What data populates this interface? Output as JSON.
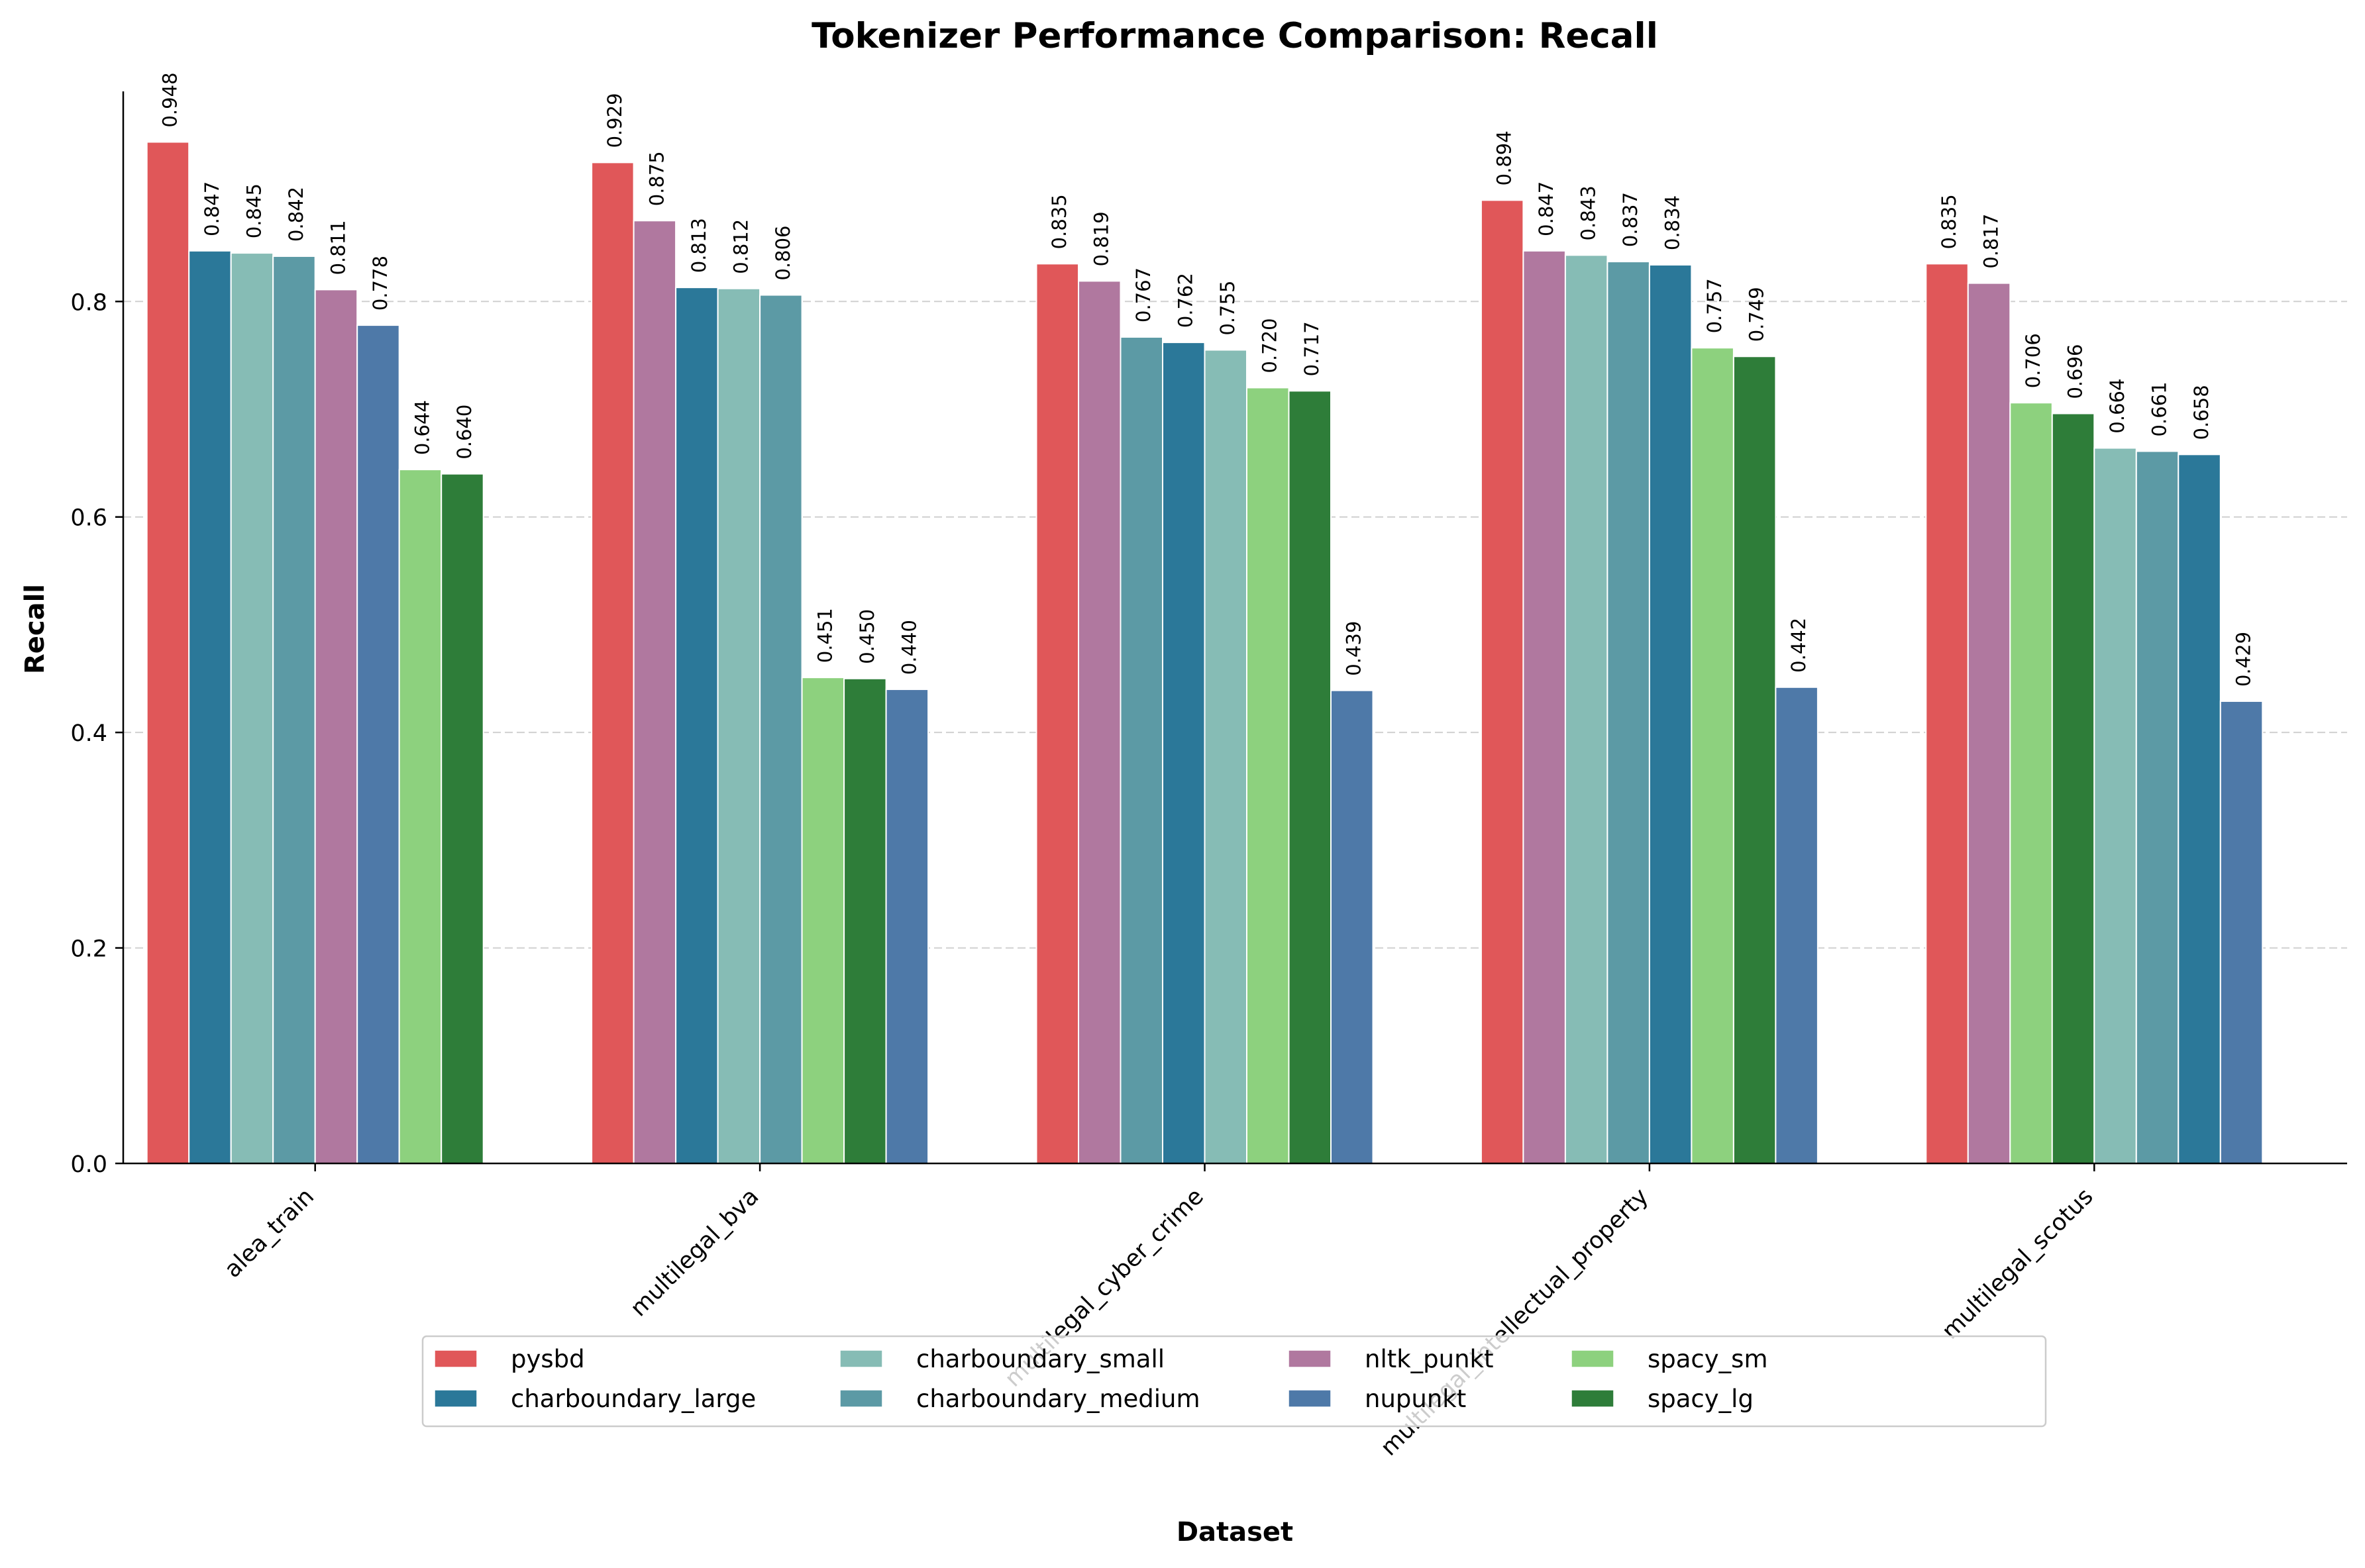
{
  "chart_data": {
    "type": "bar",
    "title": "Tokenizer Performance Comparison: Recall",
    "xlabel": "Dataset",
    "ylabel": "Recall",
    "ylim": [
      0,
      0.995
    ],
    "yticks": [
      "0.0",
      "0.2",
      "0.4",
      "0.6",
      "0.8"
    ],
    "grid": "y-dashed",
    "legend_placement": "bottom-center",
    "categories": [
      "alea_train",
      "multilegal_bva",
      "multilegal_cyber_crime",
      "multilegal_intellectual_property",
      "multilegal_scotus"
    ],
    "legend": [
      "pysbd",
      "charboundary_large",
      "charboundary_small",
      "charboundary_medium",
      "nltk_punkt",
      "nupunkt",
      "spacy_sm",
      "spacy_lg"
    ],
    "colors": {
      "pysbd": "#e05759",
      "charboundary_large": "#2b7899",
      "charboundary_small": "#86bcb5",
      "charboundary_medium": "#5c9aa5",
      "nltk_punkt": "#b0789f",
      "nupunkt": "#4e79a8",
      "spacy_sm": "#8dd17e",
      "spacy_lg": "#2e7d39"
    },
    "groups": [
      {
        "category": "alea_train",
        "bars": [
          {
            "series": "pysbd",
            "value": 0.948,
            "label": "0.948"
          },
          {
            "series": "charboundary_large",
            "value": 0.847,
            "label": "0.847"
          },
          {
            "series": "charboundary_small",
            "value": 0.845,
            "label": "0.845"
          },
          {
            "series": "charboundary_medium",
            "value": 0.842,
            "label": "0.842"
          },
          {
            "series": "nltk_punkt",
            "value": 0.811,
            "label": "0.811"
          },
          {
            "series": "nupunkt",
            "value": 0.778,
            "label": "0.778"
          },
          {
            "series": "spacy_sm",
            "value": 0.644,
            "label": "0.644"
          },
          {
            "series": "spacy_lg",
            "value": 0.64,
            "label": "0.640"
          }
        ]
      },
      {
        "category": "multilegal_bva",
        "bars": [
          {
            "series": "pysbd",
            "value": 0.929,
            "label": "0.929"
          },
          {
            "series": "nltk_punkt",
            "value": 0.875,
            "label": "0.875"
          },
          {
            "series": "charboundary_large",
            "value": 0.813,
            "label": "0.813"
          },
          {
            "series": "charboundary_small",
            "value": 0.812,
            "label": "0.812"
          },
          {
            "series": "charboundary_medium",
            "value": 0.806,
            "label": "0.806"
          },
          {
            "series": "spacy_sm",
            "value": 0.451,
            "label": "0.451"
          },
          {
            "series": "spacy_lg",
            "value": 0.45,
            "label": "0.450"
          },
          {
            "series": "nupunkt",
            "value": 0.44,
            "label": "0.440"
          }
        ]
      },
      {
        "category": "multilegal_cyber_crime",
        "bars": [
          {
            "series": "pysbd",
            "value": 0.835,
            "label": "0.835"
          },
          {
            "series": "nltk_punkt",
            "value": 0.819,
            "label": "0.819"
          },
          {
            "series": "charboundary_medium",
            "value": 0.767,
            "label": "0.767"
          },
          {
            "series": "charboundary_large",
            "value": 0.762,
            "label": "0.762"
          },
          {
            "series": "charboundary_small",
            "value": 0.755,
            "label": "0.755"
          },
          {
            "series": "spacy_sm",
            "value": 0.72,
            "label": "0.720"
          },
          {
            "series": "spacy_lg",
            "value": 0.717,
            "label": "0.717"
          },
          {
            "series": "nupunkt",
            "value": 0.439,
            "label": "0.439"
          }
        ]
      },
      {
        "category": "multilegal_intellectual_property",
        "bars": [
          {
            "series": "pysbd",
            "value": 0.894,
            "label": "0.894"
          },
          {
            "series": "nltk_punkt",
            "value": 0.847,
            "label": "0.847"
          },
          {
            "series": "charboundary_small",
            "value": 0.843,
            "label": "0.843"
          },
          {
            "series": "charboundary_medium",
            "value": 0.837,
            "label": "0.837"
          },
          {
            "series": "charboundary_large",
            "value": 0.834,
            "label": "0.834"
          },
          {
            "series": "spacy_sm",
            "value": 0.757,
            "label": "0.757"
          },
          {
            "series": "spacy_lg",
            "value": 0.749,
            "label": "0.749"
          },
          {
            "series": "nupunkt",
            "value": 0.442,
            "label": "0.442"
          }
        ]
      },
      {
        "category": "multilegal_scotus",
        "bars": [
          {
            "series": "pysbd",
            "value": 0.835,
            "label": "0.835"
          },
          {
            "series": "nltk_punkt",
            "value": 0.817,
            "label": "0.817"
          },
          {
            "series": "spacy_sm",
            "value": 0.706,
            "label": "0.706"
          },
          {
            "series": "spacy_lg",
            "value": 0.696,
            "label": "0.696"
          },
          {
            "series": "charboundary_small",
            "value": 0.664,
            "label": "0.664"
          },
          {
            "series": "charboundary_medium",
            "value": 0.661,
            "label": "0.661"
          },
          {
            "series": "charboundary_large",
            "value": 0.658,
            "label": "0.658"
          },
          {
            "series": "nupunkt",
            "value": 0.429,
            "label": "0.429"
          }
        ]
      }
    ]
  }
}
